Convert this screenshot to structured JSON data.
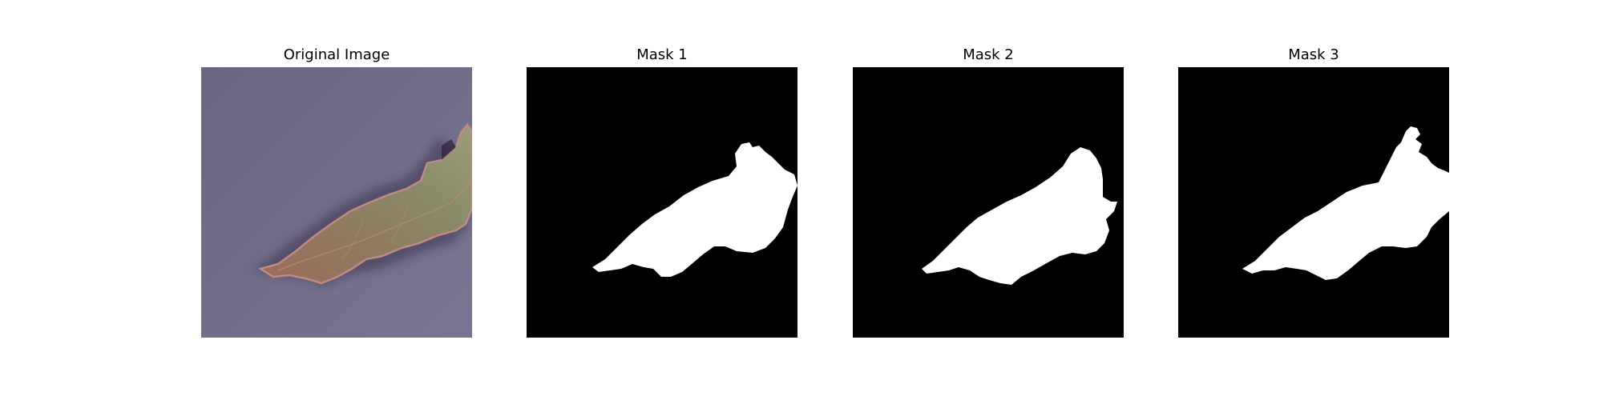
{
  "panels": [
    {
      "title": "Original Image"
    },
    {
      "title": "Mask 1"
    },
    {
      "title": "Mask 2"
    },
    {
      "title": "Mask 3"
    }
  ],
  "colors": {
    "background": "#ffffff",
    "mask_background": "#000000",
    "mask_foreground": "#ffffff",
    "photo_background": "#6f6a82",
    "leaf_main": "#8a8c6a",
    "leaf_edge": "#b5787a",
    "shadow": "#3f3850"
  }
}
